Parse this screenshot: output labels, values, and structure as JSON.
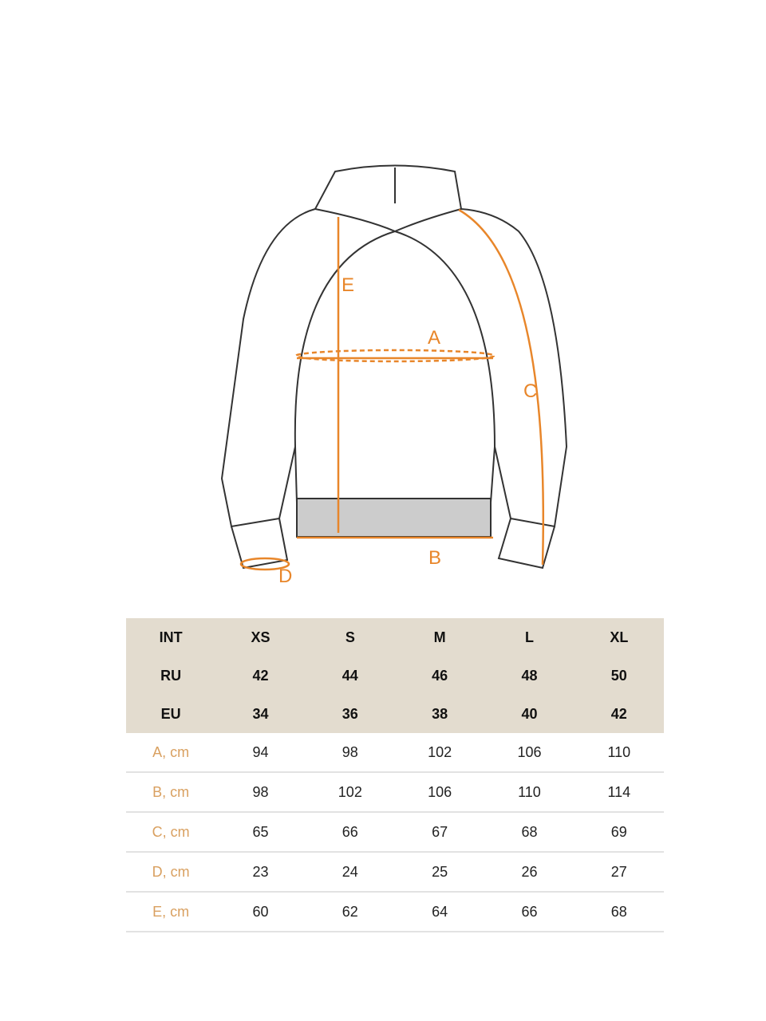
{
  "diagram": {
    "labels": {
      "a": "A",
      "b": "B",
      "c": "C",
      "d": "D",
      "e": "E"
    },
    "accent_color": "#e8862a"
  },
  "table": {
    "header_rows": [
      [
        "INT",
        "XS",
        "S",
        "M",
        "L",
        "XL"
      ],
      [
        "RU",
        "42",
        "44",
        "46",
        "48",
        "50"
      ],
      [
        "EU",
        "34",
        "36",
        "38",
        "40",
        "42"
      ]
    ],
    "measure_rows": [
      [
        "A, cm",
        "94",
        "98",
        "102",
        "106",
        "110"
      ],
      [
        "B, cm",
        "98",
        "102",
        "106",
        "110",
        "114"
      ],
      [
        "C, cm",
        "65",
        "66",
        "67",
        "68",
        "69"
      ],
      [
        "D, cm",
        "23",
        "24",
        "25",
        "26",
        "27"
      ],
      [
        "E, cm",
        "60",
        "62",
        "64",
        "66",
        "68"
      ]
    ],
    "header_bg": "#e3dccf",
    "label_color": "#d9a060"
  }
}
